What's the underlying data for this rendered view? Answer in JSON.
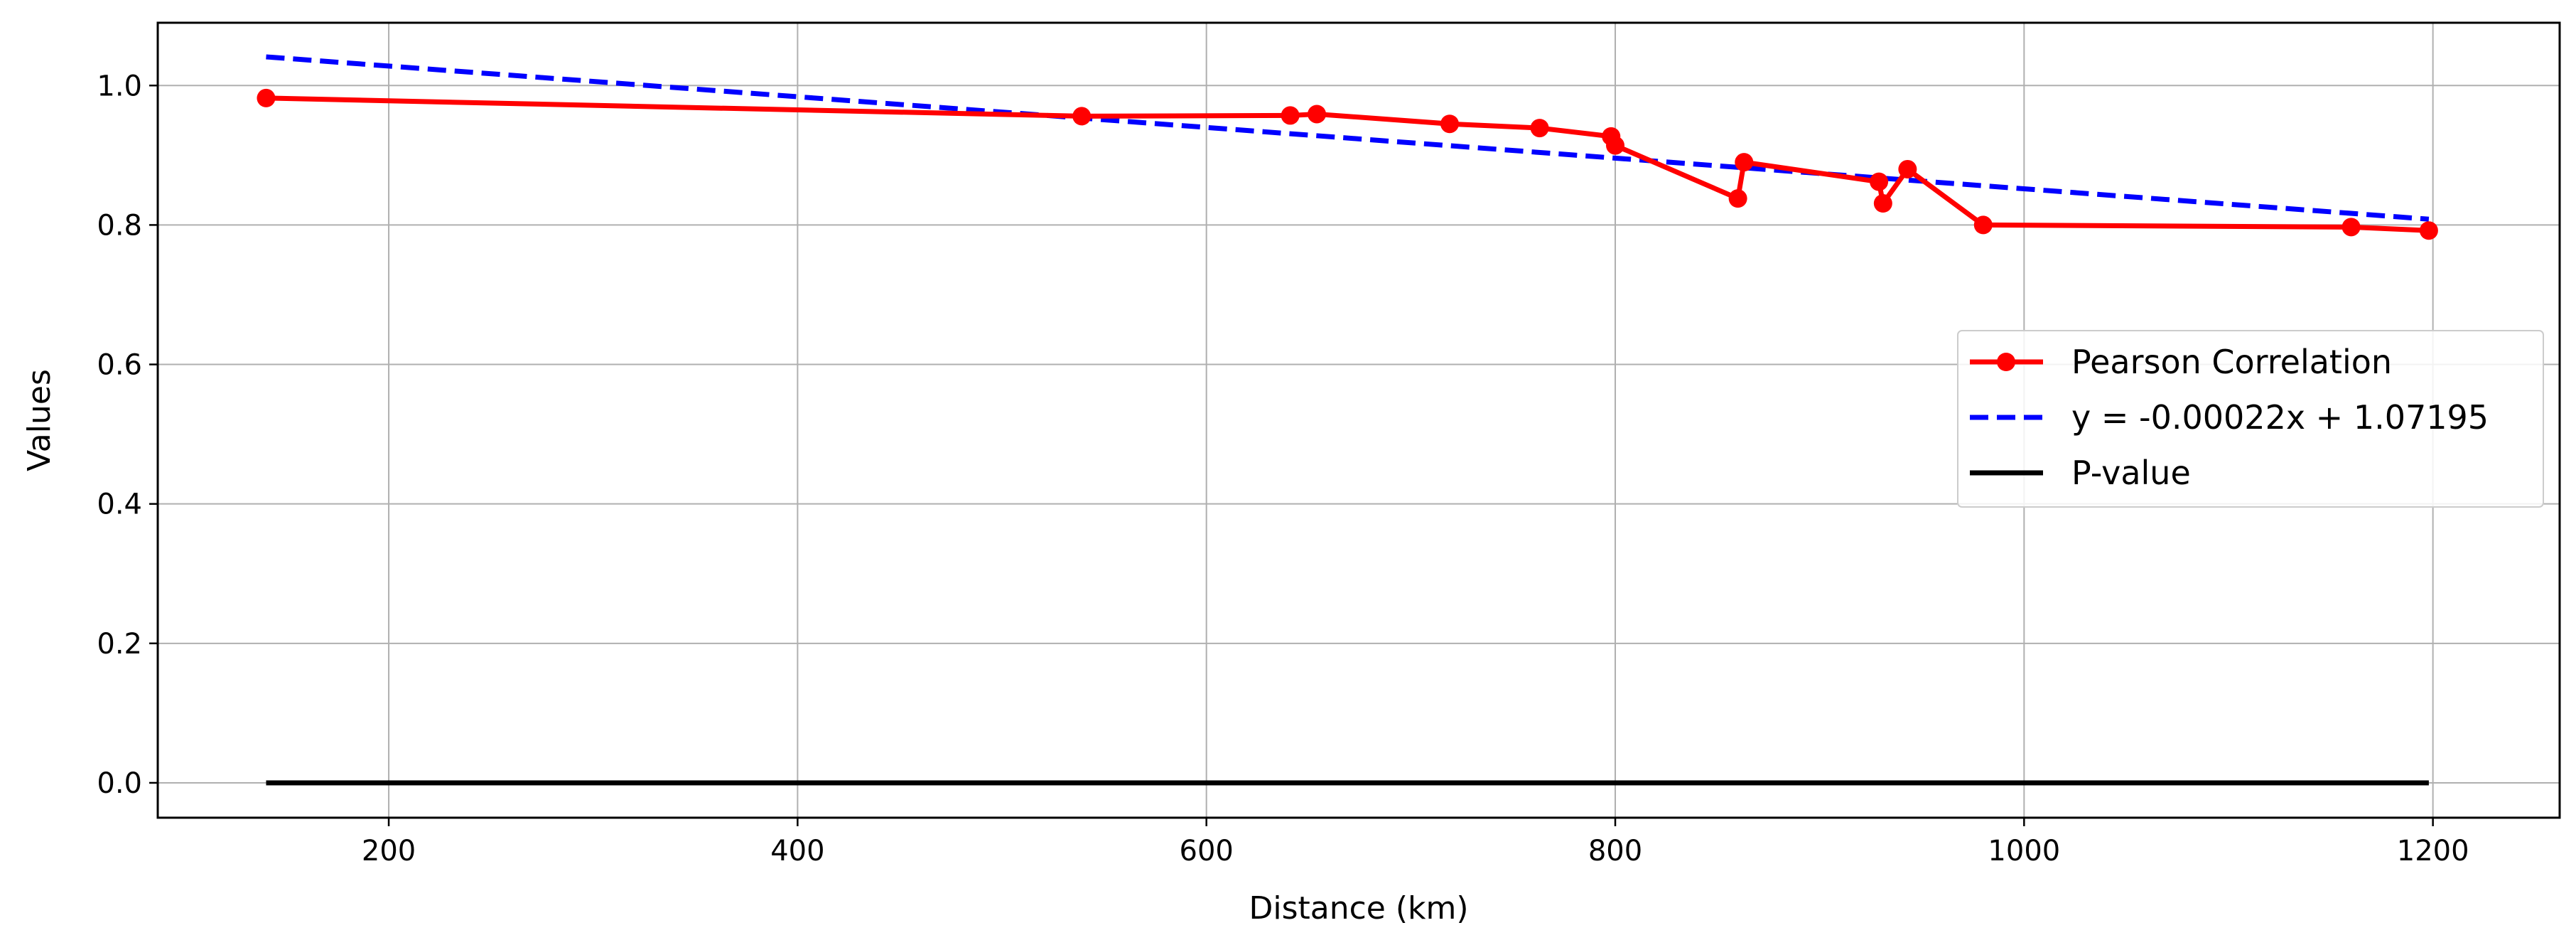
{
  "chart_data": {
    "type": "line",
    "title": "",
    "xlabel": "Distance (km)",
    "ylabel": "Values",
    "xlim": [
      87,
      1262
    ],
    "ylim": [
      -0.05,
      1.09
    ],
    "xticks": [
      200,
      400,
      600,
      800,
      1000,
      1200
    ],
    "xtick_labels": [
      "200",
      "400",
      "600",
      "800",
      "1000",
      "1200"
    ],
    "yticks": [
      0.0,
      0.2,
      0.4,
      0.6,
      0.8,
      1.0
    ],
    "ytick_labels": [
      "0.0",
      "0.2",
      "0.4",
      "0.6",
      "0.8",
      "1.0"
    ],
    "grid": true,
    "legend_position": "center-right",
    "series": [
      {
        "name": "Pearson Correlation",
        "style": "solid-with-markers",
        "color": "#ff0000",
        "x": [
          140,
          539,
          641,
          654,
          719,
          763,
          798,
          800,
          860,
          863,
          929,
          931,
          943,
          980,
          1160,
          1198
        ],
        "y": [
          0.982,
          0.956,
          0.957,
          0.959,
          0.945,
          0.939,
          0.927,
          0.914,
          0.838,
          0.89,
          0.862,
          0.831,
          0.88,
          0.8,
          0.797,
          0.792
        ]
      },
      {
        "name": "y = -0.00022x + 1.07195",
        "style": "dashed",
        "color": "#0000ff",
        "x": [
          140,
          1198
        ],
        "y": [
          1.0411,
          0.8083
        ]
      },
      {
        "name": "P-value",
        "style": "solid",
        "color": "#000000",
        "x": [
          140,
          1198
        ],
        "y": [
          0.0,
          0.0
        ]
      }
    ]
  }
}
